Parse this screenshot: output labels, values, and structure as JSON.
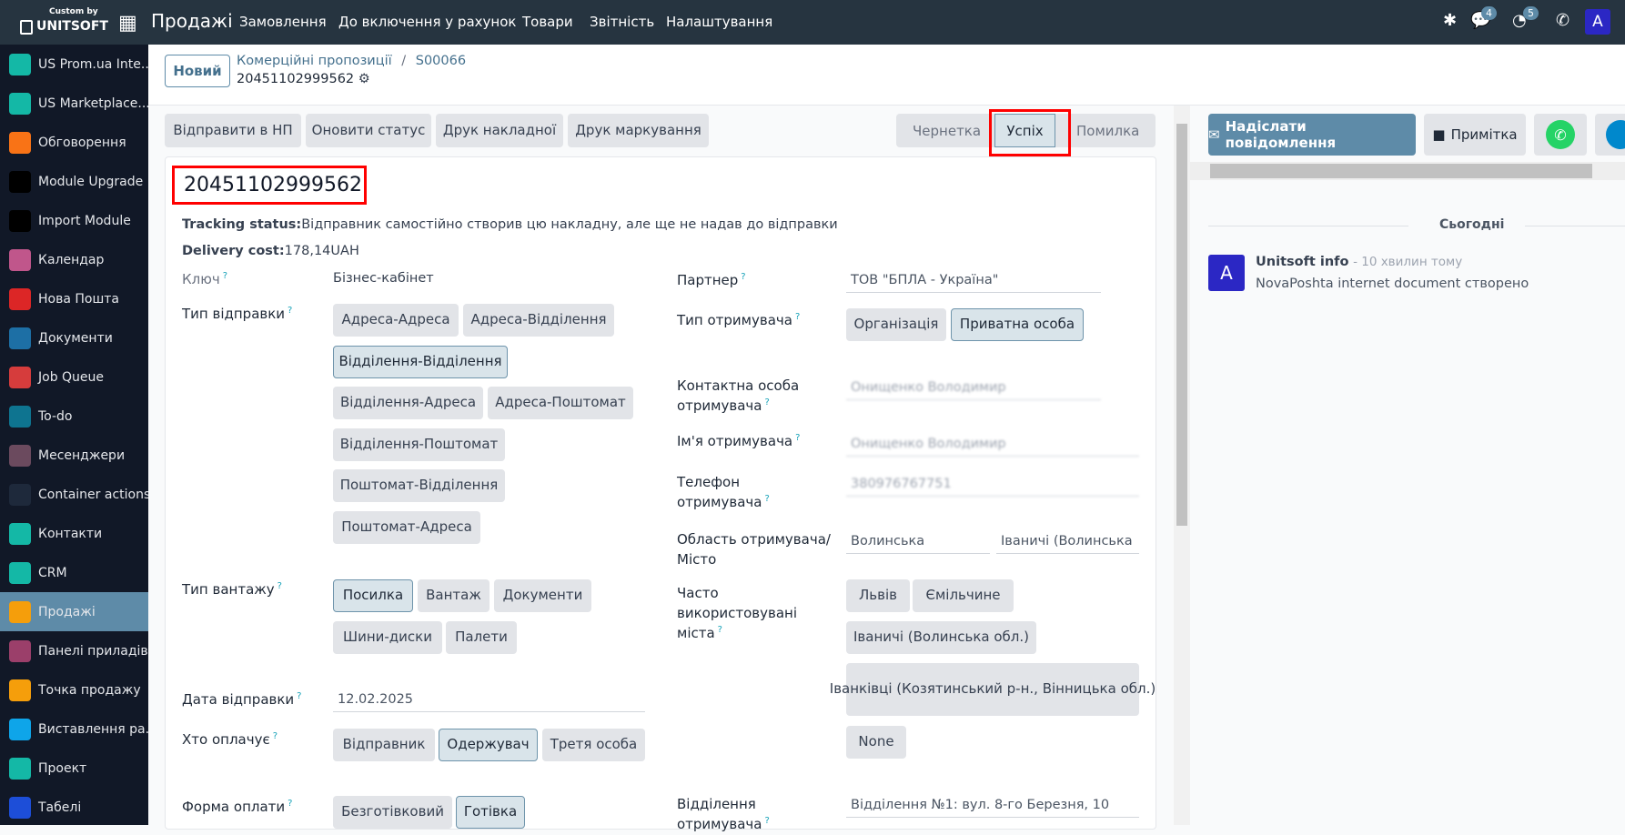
{
  "topbar": {
    "logo_top": "Custom by",
    "logo_main": "UNITSOFT",
    "app_name": "Продажі",
    "menu": [
      "Замовлення",
      "До включення у рахунок",
      "Товари",
      "Звітність",
      "Налаштування"
    ],
    "messages_count": "4",
    "activities_count": "5",
    "avatar": "A"
  },
  "sidebar": {
    "items": [
      {
        "label": "US Prom.ua Inte...",
        "icon": "cube-icon",
        "color": "#14b8a6"
      },
      {
        "label": "US Marketplace...",
        "icon": "cube-icon",
        "color": "#14b8a6"
      },
      {
        "label": "Обговорення",
        "icon": "discuss-icon",
        "color": "#f97316"
      },
      {
        "label": "Module Upgrade",
        "icon": "upgrade-icon",
        "color": "#000000"
      },
      {
        "label": "Import Module",
        "icon": "import-icon",
        "color": "#000000"
      },
      {
        "label": "Календар",
        "icon": "calendar-icon",
        "color": "#c0568b"
      },
      {
        "label": "Нова Пошта",
        "icon": "novaposhta-icon",
        "color": "#dc2626"
      },
      {
        "label": "Документи",
        "icon": "documents-icon",
        "color": "#1d6fa5"
      },
      {
        "label": "Job Queue",
        "icon": "list-icon",
        "color": "#d63c3c"
      },
      {
        "label": "To-do",
        "icon": "todo-icon",
        "color": "#0e7490"
      },
      {
        "label": "Месенджери",
        "icon": "chat-icon",
        "color": "#6b4a5e"
      },
      {
        "label": "Container actions",
        "icon": "puzzle-icon",
        "color": "#1e293b"
      },
      {
        "label": "Контакти",
        "icon": "contacts-icon",
        "color": "#14b8a6"
      },
      {
        "label": "CRM",
        "icon": "crm-icon",
        "color": "#14b8a6"
      },
      {
        "label": "Продажі",
        "icon": "sales-icon",
        "color": "#f59e0b",
        "active": true
      },
      {
        "label": "Панелі приладів",
        "icon": "dashboard-icon",
        "color": "#9b3f6a"
      },
      {
        "label": "Точка продажу",
        "icon": "pos-icon",
        "color": "#f59e0b"
      },
      {
        "label": "Виставлення ра...",
        "icon": "invoice-icon",
        "color": "#0ea5e9"
      },
      {
        "label": "Проект",
        "icon": "project-icon",
        "color": "#14b8a6"
      },
      {
        "label": "Табелі",
        "icon": "timesheet-icon",
        "color": "#1d4ed8"
      }
    ]
  },
  "breadcrumb": {
    "new_label": "Новий",
    "parent": "Комерційні пропозиції",
    "separator": "/",
    "current": "S00066",
    "record": "20451102999562"
  },
  "actions": [
    "Відправити в НП",
    "Оновити статус",
    "Друк накладної",
    "Друк маркування"
  ],
  "status": {
    "stages": [
      "Чернетка",
      "Успіх",
      "Помилка"
    ],
    "current": "Успіх"
  },
  "form": {
    "tracking_number": "20451102999562",
    "tracking_status_label": "Tracking status:",
    "tracking_status": "Відправник самостійно створив цю накладну, але ще не надав до відправки",
    "delivery_cost_label": "Delivery cost:",
    "delivery_cost": "178,14UAH",
    "key_label": "Ключ",
    "key_value": "Бізнес-кабінет",
    "ship_type_label": "Тип відправки",
    "ship_types": [
      "Адреса-Адреса",
      "Адреса-Відділення",
      "Відділення-Відділення",
      "Відділення-Адреса",
      "Адреса-Поштомат",
      "Відділення-Поштомат",
      "Поштомат-Відділення",
      "Поштомат-Адреса"
    ],
    "ship_type_selected": "Відділення-Відділення",
    "cargo_label": "Тип вантажу",
    "cargo_types": [
      "Посилка",
      "Вантаж",
      "Документи",
      "Шини-диски",
      "Палети"
    ],
    "cargo_selected": "Посилка",
    "date_label": "Дата відправки",
    "date": "12.02.2025",
    "payer_label": "Хто оплачує",
    "payers": [
      "Відправник",
      "Одержувач",
      "Третя особа"
    ],
    "payer_selected": "Одержувач",
    "payment_label": "Форма оплати",
    "payments": [
      "Безготівковий",
      "Готівка"
    ],
    "payment_selected": "Готівка",
    "partner_label": "Партнер",
    "partner": "ТОВ \"БПЛА - Україна\"",
    "recipient_type_label": "Тип отримувача",
    "recipient_types": [
      "Організація",
      "Приватна особа"
    ],
    "recipient_type_selected": "Приватна особа",
    "contact_label": "Контактна особа отримувача",
    "contact": "Онищенко Володимир",
    "name_label": "Ім'я отримувача",
    "name": "Онищенко Володимир",
    "phone_label": "Телефон отримувача",
    "phone": "380976767751",
    "region_label": "Область отримувача/ Місто",
    "region": "Волинська",
    "city": "Іваничі (Волинська",
    "frequent_label": "Часто використовувані міста",
    "frequent": [
      "Львів",
      "Ємільчине",
      "Іваничі (Волинська обл.)",
      "Іванківці (Козятинський р-н., Вінницька обл.)",
      "None"
    ],
    "branch_label": "Відділення отримувача",
    "branch": "Відділення №1: вул. 8-го Березня, 10"
  },
  "chatter": {
    "send_label": "Надіслати повідомлення",
    "note_label": "Примітка",
    "date_sep": "Сьогодні",
    "message": {
      "avatar": "A",
      "author": "Unitsoft info",
      "time": "- 10 хвилин тому",
      "body": "NovaPoshta internet document створено"
    }
  },
  "colors": {
    "topbar": "#263440",
    "sidebar": "#111827",
    "accent": "#5e8ba8",
    "highlight": "#ff0000",
    "avatar": "#2b27c4"
  }
}
